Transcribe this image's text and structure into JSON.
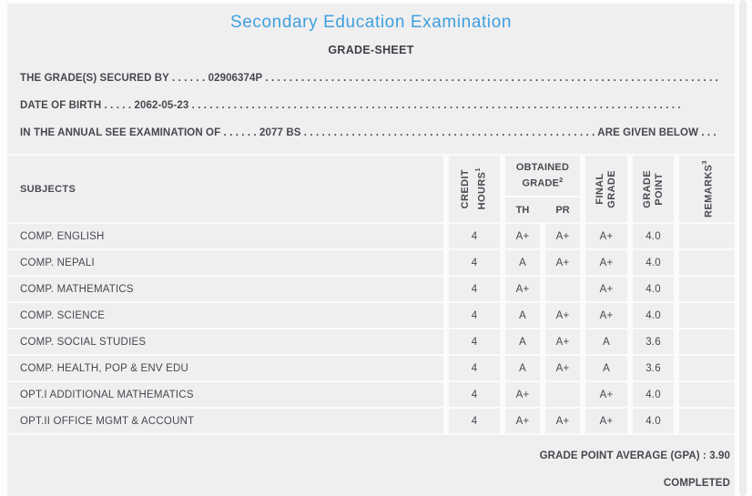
{
  "colors": {
    "accent_blue": "#3EA0DF",
    "panel_bg": "#F0EFF0",
    "text": "#47474F"
  },
  "header": {
    "title": "Secondary Education Examination",
    "subtitle": "GRADE-SHEET"
  },
  "info": {
    "lines": [
      "THE GRADE(S) SECURED BY . . . . . . 02906374P . . . . . . . . . . . . . . . . . . . . . . . . . . . . . . . . . . . . . . . . . . . . . . . . . . . . . . . . . . . . . . . . . . . . . . . . . . . .",
      "DATE OF BIRTH . . . . . 2062-05-23 . . . . . . . . . . . . . . . . . . . . . . . . . . . . . . . . . . . . . . . . . . . . . . . . . . . . . . . . . . . . . . . . . . . . . . . . . . . . . . . . . .",
      "IN THE ANNUAL SEE EXAMINATION OF . . . . . . 2077 BS . . . . . . . . . . . . . . . . . . . . . . . . . . . . . . . . . . . . . . . . . . . . . . . . . ARE GIVEN BELOW . . ."
    ]
  },
  "table": {
    "headers": {
      "subjects": "SUBJECTS",
      "credit_line1": "CREDIT",
      "credit_line2": "HOURS",
      "credit_sup": "1",
      "obtained_line1": "OBTAINED",
      "obtained_line2": "GRADE",
      "obtained_sup": "2",
      "th": "TH",
      "pr": "PR",
      "final_line1": "FINAL",
      "final_line2": "GRADE",
      "point_line1": "GRADE",
      "point_line2": "POINT",
      "remarks": "REMARKS",
      "remarks_sup": "3"
    },
    "rows": [
      {
        "subject": "COMP. ENGLISH",
        "credit": "4",
        "th": "A+",
        "pr": "A+",
        "final": "A+",
        "point": "4.0",
        "remarks": ""
      },
      {
        "subject": "COMP. NEPALI",
        "credit": "4",
        "th": "A",
        "pr": "A+",
        "final": "A+",
        "point": "4.0",
        "remarks": ""
      },
      {
        "subject": "COMP. MATHEMATICS",
        "credit": "4",
        "th": "A+",
        "pr": "",
        "final": "A+",
        "point": "4.0",
        "remarks": ""
      },
      {
        "subject": "COMP. SCIENCE",
        "credit": "4",
        "th": "A",
        "pr": "A+",
        "final": "A+",
        "point": "4.0",
        "remarks": ""
      },
      {
        "subject": "COMP. SOCIAL STUDIES",
        "credit": "4",
        "th": "A",
        "pr": "A+",
        "final": "A",
        "point": "3.6",
        "remarks": ""
      },
      {
        "subject": "COMP. HEALTH, POP & ENV EDU",
        "credit": "4",
        "th": "A",
        "pr": "A+",
        "final": "A",
        "point": "3.6",
        "remarks": ""
      },
      {
        "subject": "OPT.I ADDITIONAL MATHEMATICS",
        "credit": "4",
        "th": "A+",
        "pr": "",
        "final": "A+",
        "point": "4.0",
        "remarks": ""
      },
      {
        "subject": "OPT.II OFFICE MGMT & ACCOUNT",
        "credit": "4",
        "th": "A+",
        "pr": "A+",
        "final": "A+",
        "point": "4.0",
        "remarks": ""
      }
    ]
  },
  "footer": {
    "gpa_line": "GRADE POINT AVERAGE (GPA) : 3.90",
    "status": "COMPLETED"
  }
}
